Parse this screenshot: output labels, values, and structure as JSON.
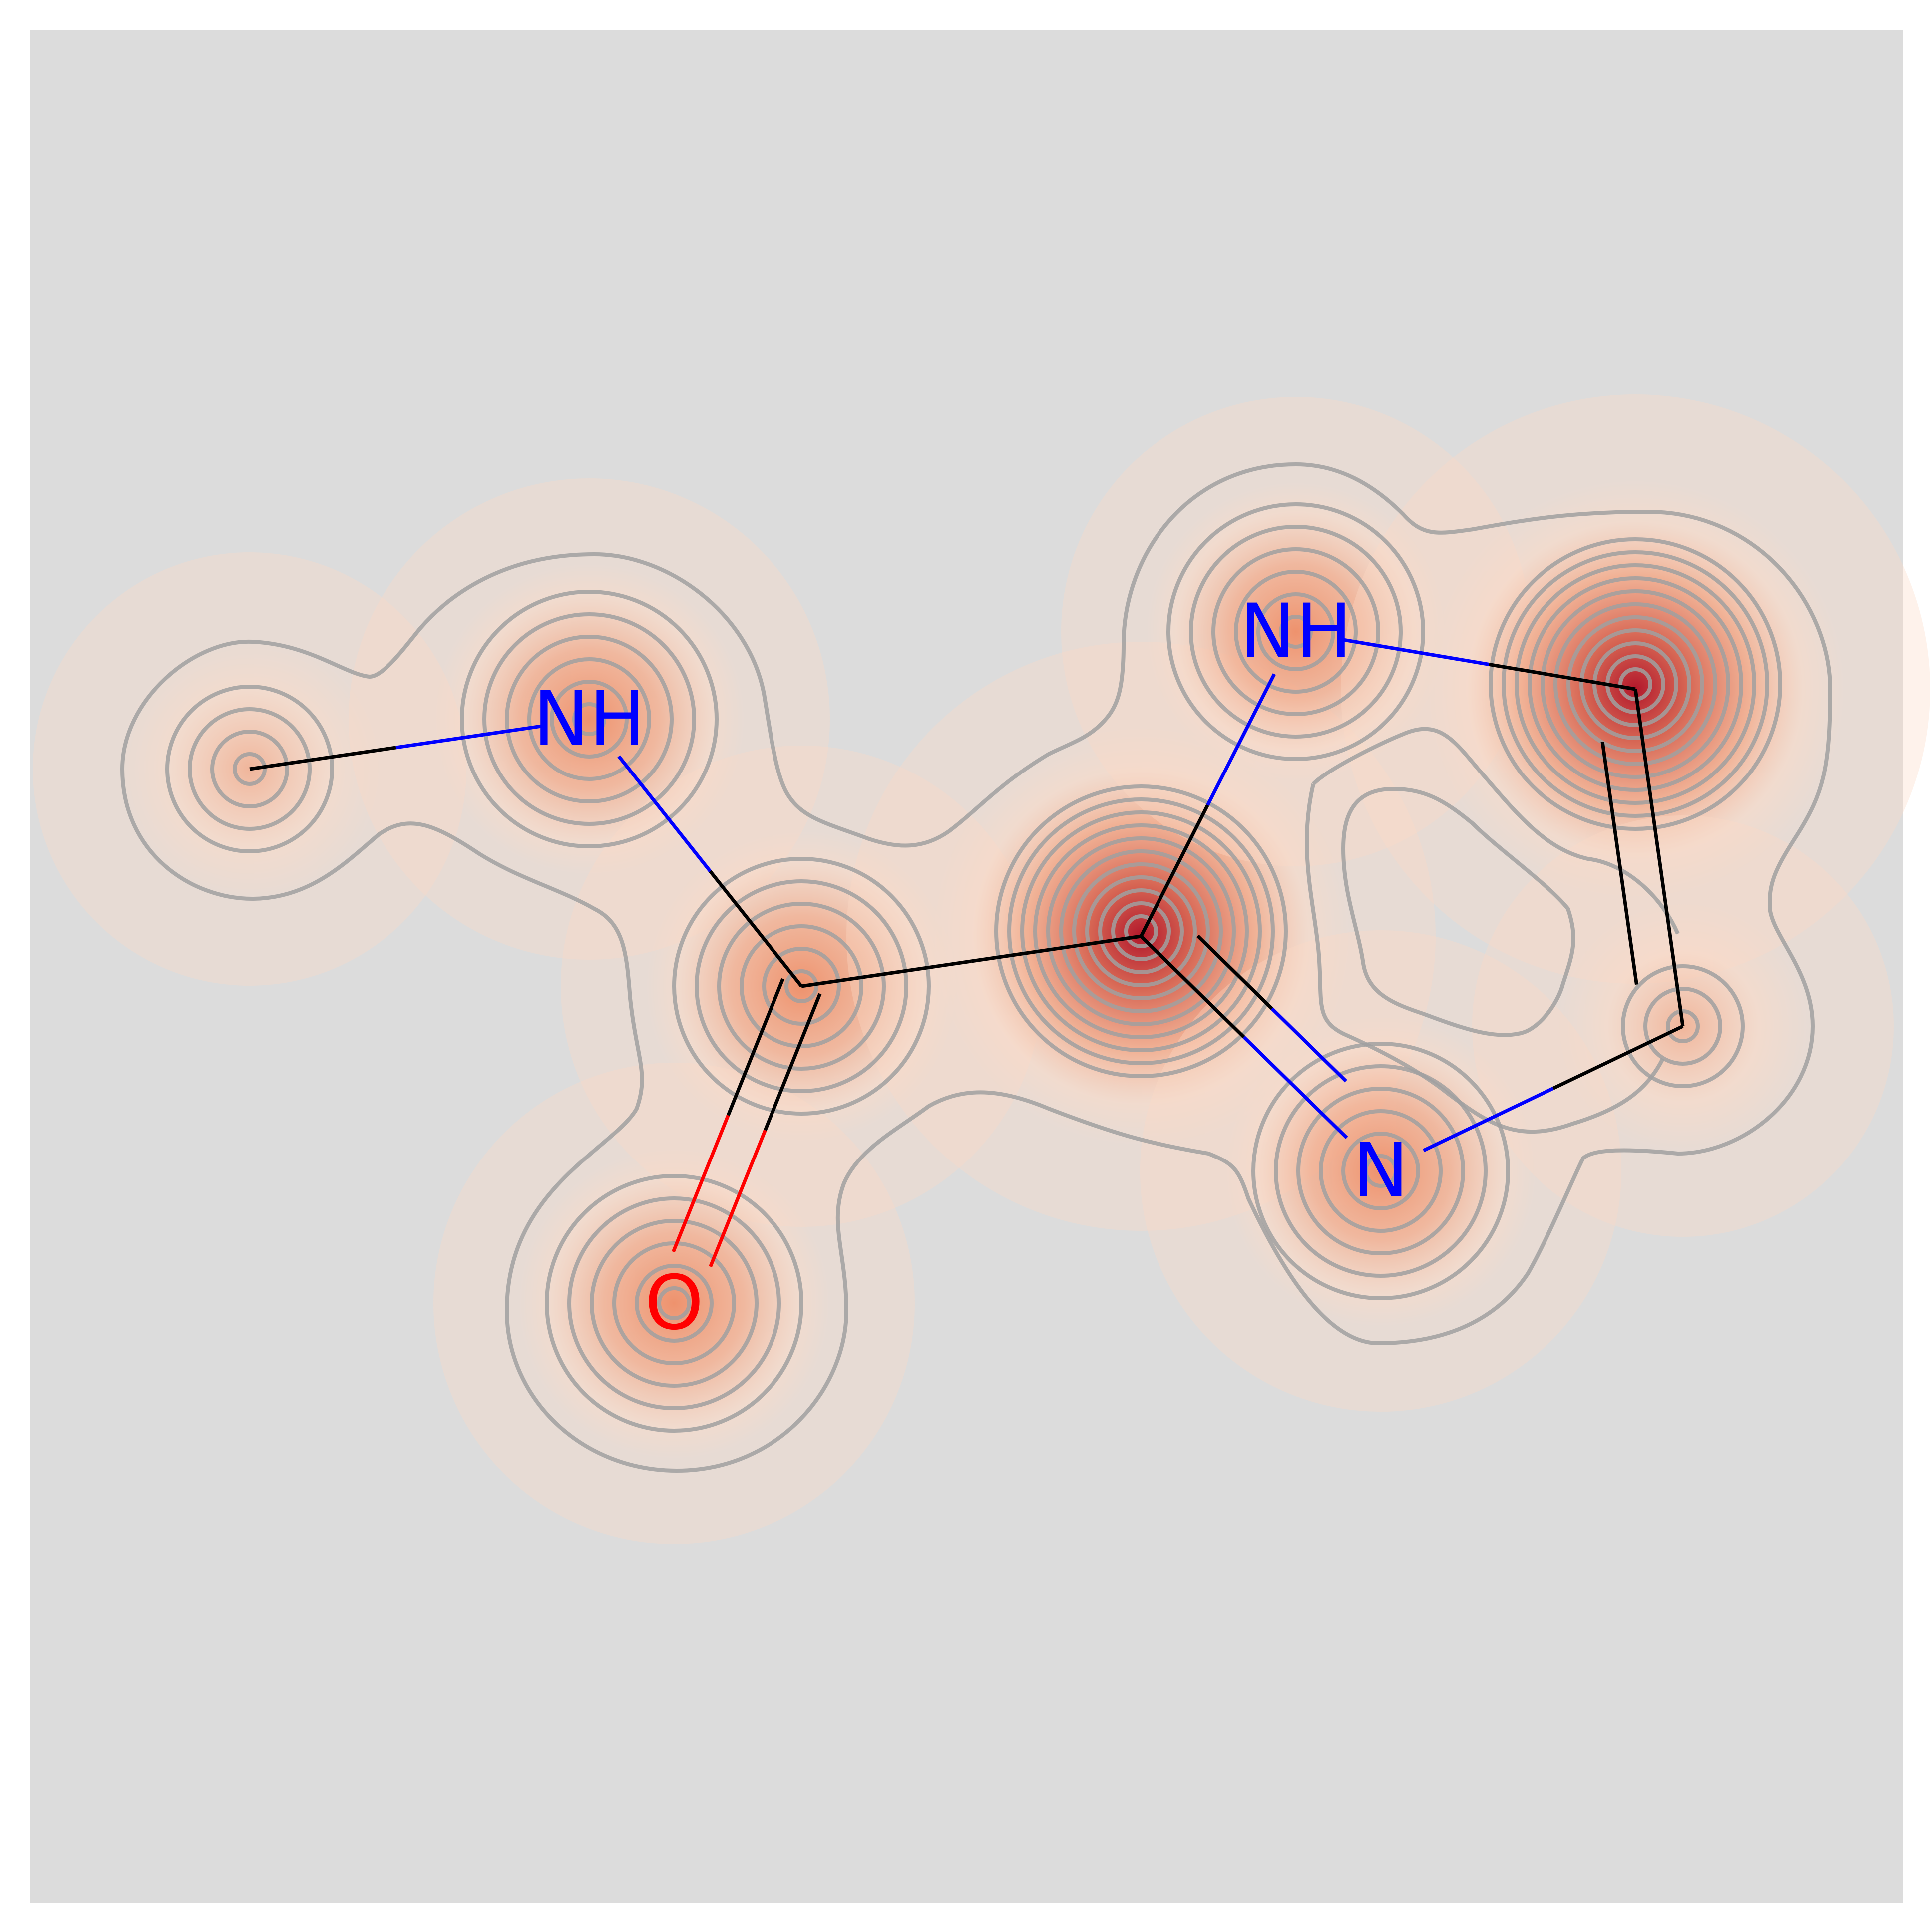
{
  "colors": {
    "panel_background": "#dcdcdc",
    "page_background": "#ffffff",
    "bond_carbon": "#000000",
    "nitrogen": "#0000ff",
    "oxygen": "#ff0000",
    "contour_line": "#a0a0a0",
    "heat_peak": "#b2182b",
    "heat_mid": "#ef8a62",
    "heat_low": "#fddbc7"
  },
  "molecule": {
    "atoms": [
      {
        "id": "C-methyl",
        "element": "C",
        "label": "",
        "weight": 0.35
      },
      {
        "id": "N-amide",
        "element": "N",
        "label": "NH",
        "weight": 0.55
      },
      {
        "id": "C-carbonyl",
        "element": "C",
        "label": "",
        "weight": 0.55
      },
      {
        "id": "O-carbonyl",
        "element": "O",
        "label": "O",
        "weight": 0.55
      },
      {
        "id": "C2-ring",
        "element": "C",
        "label": "",
        "weight": 1.0
      },
      {
        "id": "N1-ring",
        "element": "N",
        "label": "NH",
        "weight": 0.5
      },
      {
        "id": "C5-ring",
        "element": "C",
        "label": "",
        "weight": 1.0
      },
      {
        "id": "C4-ring",
        "element": "C",
        "label": "",
        "weight": 0.3
      },
      {
        "id": "N3-ring",
        "element": "N",
        "label": "N",
        "weight": 0.55
      }
    ],
    "bonds": [
      {
        "from": 0,
        "to": 1,
        "order": 1
      },
      {
        "from": 1,
        "to": 2,
        "order": 1
      },
      {
        "from": 2,
        "to": 3,
        "order": 2
      },
      {
        "from": 2,
        "to": 4,
        "order": 1
      },
      {
        "from": 4,
        "to": 5,
        "order": 1
      },
      {
        "from": 5,
        "to": 6,
        "order": 1
      },
      {
        "from": 6,
        "to": 7,
        "order": 2
      },
      {
        "from": 7,
        "to": 8,
        "order": 1
      },
      {
        "from": 8,
        "to": 4,
        "order": 2
      }
    ]
  }
}
